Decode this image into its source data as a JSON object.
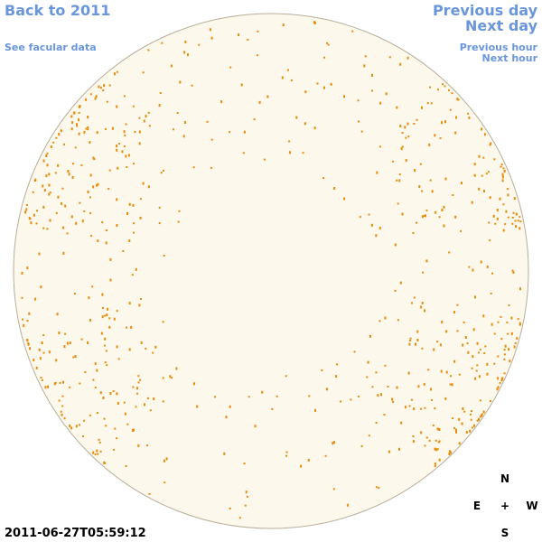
{
  "links": {
    "back": "Back to 2011",
    "facular": "See facular data",
    "previous_day": "Previous day",
    "next_day": "Next day",
    "previous_hour": "Previous hour",
    "next_hour": "Next hour"
  },
  "compass": {
    "north": "N",
    "east": "E",
    "center": "+",
    "west": "W",
    "south": "S"
  },
  "timestamp": "2011-06-27T05:59:12"
}
